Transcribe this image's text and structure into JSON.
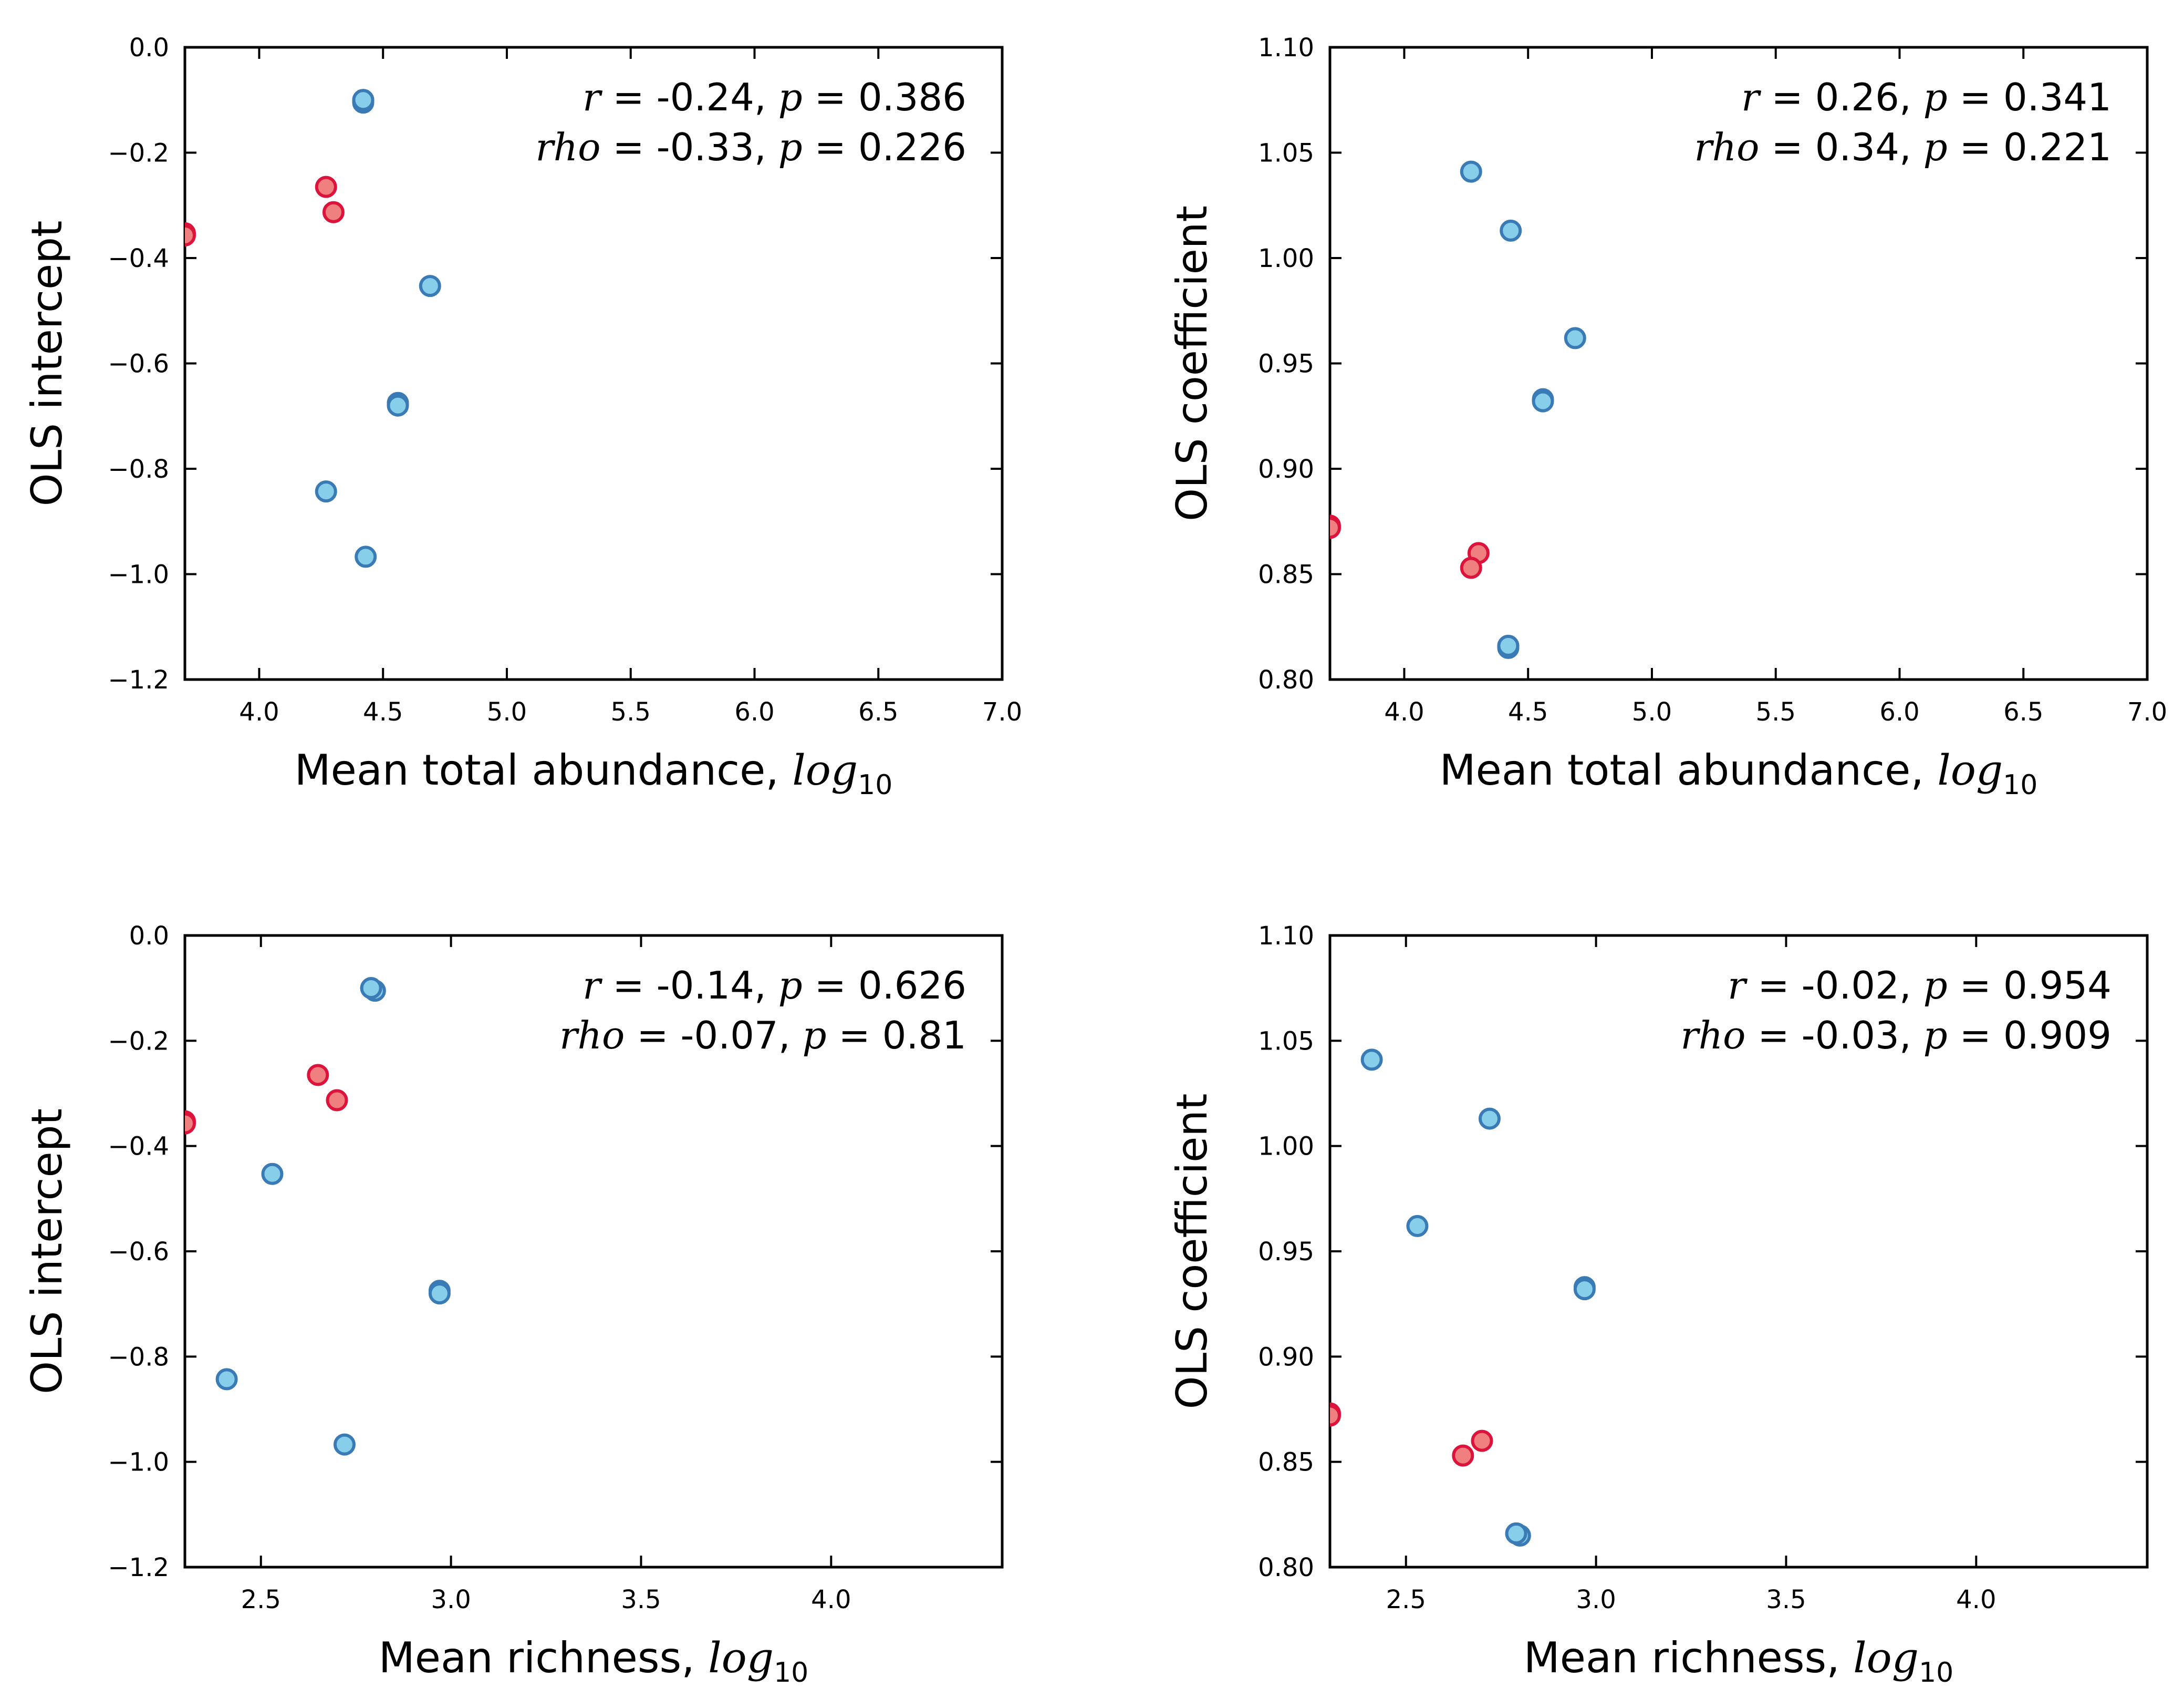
{
  "colors": {
    "blue_fill": "#87ceeb",
    "blue_edge": "#3b7bb5",
    "red_fill": "#f08080",
    "red_edge": "#dc143c"
  },
  "chart_data": [
    {
      "type": "scatter",
      "xlabel": "Mean total abundance, log10",
      "ylabel": "OLS intercept",
      "xlim": [
        3.7,
        7.0
      ],
      "ylim": [
        -1.2,
        0.0
      ],
      "xticks": [
        "4.0",
        "4.5",
        "5.0",
        "5.5",
        "6.0",
        "6.5",
        "7.0"
      ],
      "yticks": [
        "0.0",
        "−0.2",
        "−0.4",
        "−0.6",
        "−0.8",
        "−1.0",
        "−1.2"
      ],
      "annotation": {
        "line1": [
          "r",
          " = -0.24, ",
          "p",
          " = 0.386"
        ],
        "line2": [
          "rho",
          " = -0.33, ",
          "p",
          " = 0.226"
        ]
      },
      "series": [
        {
          "color": "blue",
          "x": [
            4.42,
            4.42,
            4.42,
            4.69,
            4.56,
            4.56,
            4.27,
            4.43
          ],
          "y": [
            -0.1,
            -0.105,
            -0.1,
            -0.453,
            -0.675,
            -0.68,
            -0.843,
            -0.967
          ]
        },
        {
          "color": "red",
          "x": [
            3.7,
            3.7,
            4.27,
            4.3
          ],
          "y": [
            -0.353,
            -0.357,
            -0.265,
            -0.313
          ]
        }
      ]
    },
    {
      "type": "scatter",
      "xlabel": "Mean total abundance, log10",
      "ylabel": "OLS coefficient",
      "xlim": [
        3.7,
        7.0
      ],
      "ylim": [
        0.8,
        1.1
      ],
      "xticks": [
        "4.0",
        "4.5",
        "5.0",
        "5.5",
        "6.0",
        "6.5",
        "7.0"
      ],
      "yticks": [
        "1.10",
        "1.05",
        "1.00",
        "0.95",
        "0.90",
        "0.85",
        "0.80"
      ],
      "annotation": {
        "line1": [
          "r",
          " = 0.26, ",
          "p",
          " = 0.341"
        ],
        "line2": [
          "rho",
          " = 0.34, ",
          "p",
          " = 0.221"
        ]
      },
      "series": [
        {
          "color": "blue",
          "x": [
            4.27,
            4.43,
            4.69,
            4.56,
            4.56,
            4.42,
            4.42,
            4.42
          ],
          "y": [
            1.041,
            1.013,
            0.962,
            0.933,
            0.932,
            0.816,
            0.815,
            0.816
          ]
        },
        {
          "color": "red",
          "x": [
            3.7,
            3.7,
            4.3,
            4.27
          ],
          "y": [
            0.873,
            0.872,
            0.86,
            0.853
          ]
        }
      ]
    },
    {
      "type": "scatter",
      "xlabel": "Mean richness, log10",
      "ylabel": "OLS intercept",
      "xlim": [
        2.3,
        4.45
      ],
      "ylim": [
        -1.2,
        0.0
      ],
      "xticks": [
        "2.5",
        "3.0",
        "3.5",
        "4.0"
      ],
      "yticks": [
        "0.0",
        "−0.2",
        "−0.4",
        "−0.6",
        "−0.8",
        "−1.0",
        "−1.2"
      ],
      "annotation": {
        "line1": [
          "r",
          " = -0.14, ",
          "p",
          " = 0.626"
        ],
        "line2": [
          "rho",
          " = -0.07, ",
          "p",
          " = 0.81"
        ]
      },
      "series": [
        {
          "color": "blue",
          "x": [
            2.79,
            2.8,
            2.79,
            2.53,
            2.97,
            2.97,
            2.41,
            2.72
          ],
          "y": [
            -0.1,
            -0.105,
            -0.1,
            -0.453,
            -0.675,
            -0.68,
            -0.843,
            -0.967
          ]
        },
        {
          "color": "red",
          "x": [
            2.3,
            2.3,
            2.65,
            2.7
          ],
          "y": [
            -0.353,
            -0.357,
            -0.265,
            -0.313
          ]
        }
      ]
    },
    {
      "type": "scatter",
      "xlabel": "Mean richness, log10",
      "ylabel": "OLS coefficient",
      "xlim": [
        2.3,
        4.45
      ],
      "ylim": [
        0.8,
        1.1
      ],
      "xticks": [
        "2.5",
        "3.0",
        "3.5",
        "4.0"
      ],
      "yticks": [
        "1.10",
        "1.05",
        "1.00",
        "0.95",
        "0.90",
        "0.85",
        "0.80"
      ],
      "annotation": {
        "line1": [
          "r",
          " = -0.02, ",
          "p",
          " = 0.954"
        ],
        "line2": [
          "rho",
          " = -0.03, ",
          "p",
          " = 0.909"
        ]
      },
      "series": [
        {
          "color": "blue",
          "x": [
            2.41,
            2.72,
            2.53,
            2.97,
            2.97,
            2.79,
            2.8,
            2.79
          ],
          "y": [
            1.041,
            1.013,
            0.962,
            0.933,
            0.932,
            0.816,
            0.815,
            0.816
          ]
        },
        {
          "color": "red",
          "x": [
            2.3,
            2.3,
            2.7,
            2.65
          ],
          "y": [
            0.873,
            0.872,
            0.86,
            0.853
          ]
        }
      ]
    }
  ]
}
